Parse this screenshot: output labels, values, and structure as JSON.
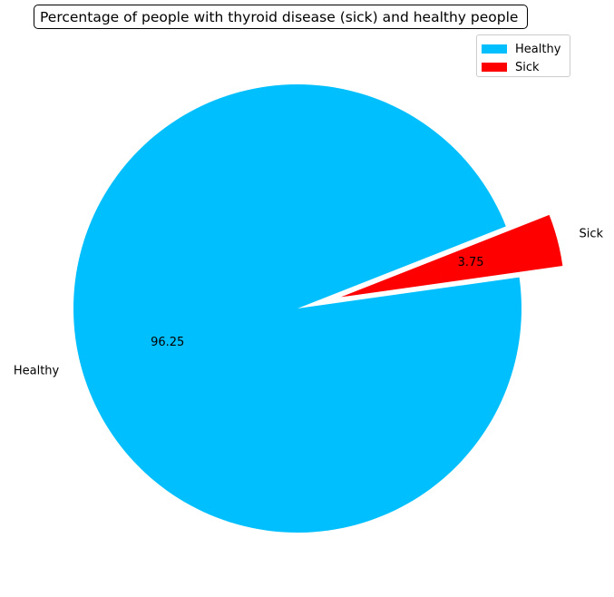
{
  "chart_data": {
    "type": "pie",
    "title": "Percentage of people with thyroid disease (sick) and healthy people",
    "slices": [
      {
        "label": "Healthy",
        "value": 96.25,
        "pct_label": "96.25",
        "color": "#00BFFF",
        "explode": 0
      },
      {
        "label": "Sick",
        "value": 3.75,
        "pct_label": "3.75",
        "color": "#FF0000",
        "explode": 0.2
      }
    ],
    "legend": {
      "position": "top-right",
      "entries": [
        "Healthy",
        "Sick"
      ]
    }
  }
}
